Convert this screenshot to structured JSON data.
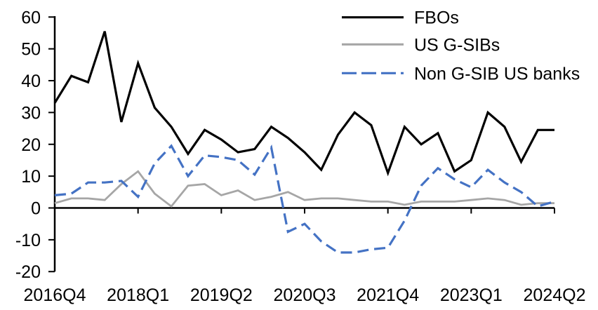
{
  "chart_data": {
    "type": "line",
    "title": "",
    "xlabel": "",
    "ylabel": "",
    "grid": false,
    "legend_position": "top-right-inside",
    "ylim": [
      -20,
      60
    ],
    "y_ticks": [
      60,
      50,
      40,
      30,
      20,
      10,
      0,
      -10,
      -20
    ],
    "x_tick_labels": [
      "2016Q4",
      "2018Q1",
      "2019Q2",
      "2020Q3",
      "2021Q4",
      "2023Q1",
      "2024Q2"
    ],
    "x_tick_indices": [
      0,
      5,
      10,
      15,
      20,
      25,
      30
    ],
    "categories": [
      "2016Q4",
      "2017Q1",
      "2017Q2",
      "2017Q3",
      "2017Q4",
      "2018Q1",
      "2018Q2",
      "2018Q3",
      "2018Q4",
      "2019Q1",
      "2019Q2",
      "2019Q3",
      "2019Q4",
      "2020Q1",
      "2020Q2",
      "2020Q3",
      "2020Q4",
      "2021Q1",
      "2021Q2",
      "2021Q3",
      "2021Q4",
      "2022Q1",
      "2022Q2",
      "2022Q3",
      "2022Q4",
      "2023Q1",
      "2023Q2",
      "2023Q3",
      "2023Q4",
      "2024Q1",
      "2024Q2"
    ],
    "series": [
      {
        "name": "FBOs",
        "color": "#000000",
        "style": "solid",
        "values": [
          33,
          41.5,
          39.5,
          55.5,
          27,
          45.5,
          31.5,
          25.5,
          17,
          24.5,
          21.5,
          17.5,
          18.5,
          25.5,
          22,
          17.5,
          12,
          23,
          30,
          26,
          11,
          25.5,
          20,
          23.5,
          11.5,
          15,
          30,
          25.5,
          14.5,
          24.5,
          24.5
        ]
      },
      {
        "name": "US G-SIBs",
        "color": "#A6A6A6",
        "style": "solid",
        "values": [
          1.5,
          3,
          3,
          2.5,
          7.5,
          11.5,
          4.5,
          0.5,
          7,
          7.5,
          4,
          5.5,
          2.5,
          3.5,
          5,
          2.5,
          3,
          3,
          2.5,
          2,
          2,
          1,
          2,
          2,
          2,
          2.5,
          3,
          2.5,
          1,
          1.5,
          1.5
        ]
      },
      {
        "name": "Non G-SIB US banks",
        "color": "#4472C4",
        "style": "dashed",
        "values": [
          4,
          4.5,
          8,
          8,
          8.5,
          3.5,
          14,
          19.5,
          10,
          16.5,
          16,
          15,
          10.5,
          19,
          -7.5,
          -5,
          -10.5,
          -14,
          -14,
          -13,
          -12.5,
          -4,
          7,
          12.5,
          9,
          6.5,
          12,
          8,
          5,
          0.5,
          2
        ]
      }
    ]
  }
}
